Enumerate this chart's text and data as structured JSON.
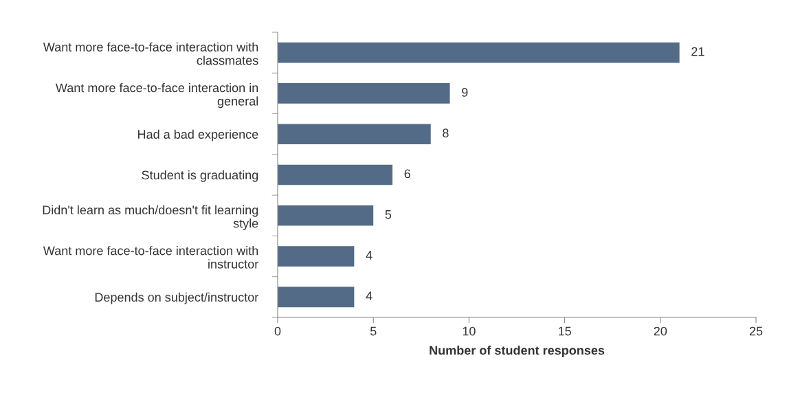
{
  "chart_data": {
    "type": "bar",
    "orientation": "horizontal",
    "xlabel": "Number of student responses",
    "categories": [
      "Want more face-to-face interaction with\nclassmates",
      "Want more face-to-face interaction in\ngeneral",
      "Had a bad experience",
      "Student is graduating",
      "Didn't learn as much/doesn't fit learning\nstyle",
      "Want more face-to-face interaction with\ninstructor",
      "Depends on subject/instructor"
    ],
    "values": [
      21,
      9,
      8,
      6,
      5,
      4,
      4
    ],
    "color": "#536b87",
    "data_labels": true,
    "grid": false,
    "xlim": [
      0,
      25
    ],
    "xticks": [
      0,
      5,
      10,
      15,
      20,
      25
    ]
  }
}
